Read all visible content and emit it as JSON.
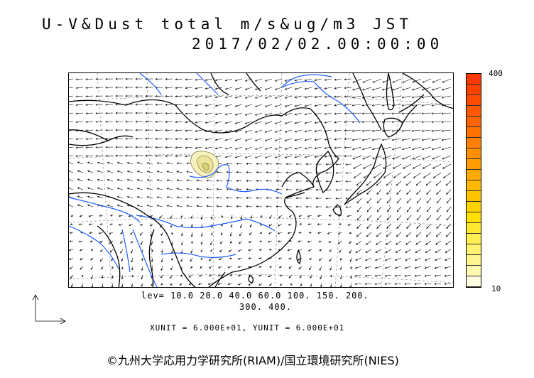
{
  "title": {
    "line1": "U-V&Dust total m/s&ug/m3 JST",
    "line2": "2017/02/02.00:00:00"
  },
  "colorbar": {
    "max_label": "400",
    "min_label": "10",
    "colors": [
      "#fffde0",
      "#fff8b0",
      "#fff590",
      "#fff270",
      "#ffef50",
      "#ffe830",
      "#ffe000",
      "#ffd200",
      "#ffc400",
      "#ffb800",
      "#ffaa00",
      "#ff9c00",
      "#ff8e00",
      "#ff8000",
      "#ff7200",
      "#ff6400",
      "#ff5800",
      "#ff4c00",
      "#ff4200",
      "#ff3a00"
    ]
  },
  "levels": {
    "line1": "lev= 10.0 20.0 40.0 60.0 100. 150. 200.",
    "line2": "300. 400."
  },
  "units": {
    "text": "XUNIT = 6.000E+01, YUNIT = 6.000E+01"
  },
  "copyright": {
    "text": "©九州大学応用力学研究所(RIAM)/国立環境研究所(NIES)"
  },
  "map": {
    "coastline_color": "#000000",
    "river_color": "#1f5fff",
    "grid_color": "#7a7a7a",
    "dust_colors": [
      "#f6f2c0",
      "#ece49a",
      "#d8cf78"
    ]
  }
}
